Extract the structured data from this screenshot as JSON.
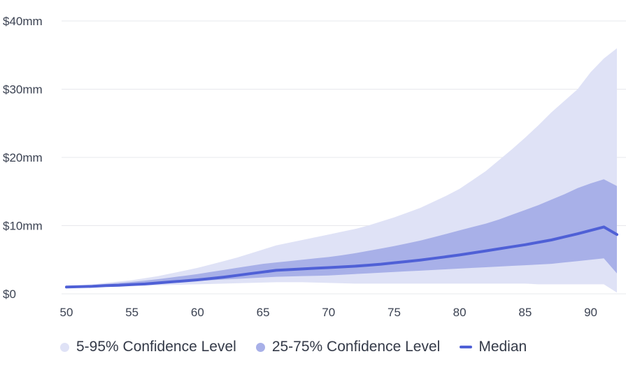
{
  "chart_data": {
    "type": "area",
    "title": "",
    "xlabel": "",
    "ylabel": "",
    "xlim": [
      50,
      92
    ],
    "ylim": [
      0,
      40
    ],
    "x_ticks": [
      50,
      55,
      60,
      65,
      70,
      75,
      80,
      85,
      90
    ],
    "x_tick_labels": [
      "50",
      "55",
      "60",
      "65",
      "70",
      "75",
      "80",
      "85",
      "90"
    ],
    "y_ticks": [
      0,
      10,
      20,
      30,
      40
    ],
    "y_tick_labels": [
      "$0",
      "$10mm",
      "$20mm",
      "$30mm",
      "$40mm"
    ],
    "x": [
      50,
      51,
      52,
      53,
      54,
      55,
      56,
      57,
      58,
      59,
      60,
      61,
      62,
      63,
      64,
      65,
      66,
      67,
      68,
      69,
      70,
      71,
      72,
      73,
      74,
      75,
      76,
      77,
      78,
      79,
      80,
      81,
      82,
      83,
      84,
      85,
      86,
      87,
      88,
      89,
      90,
      91,
      92
    ],
    "series": [
      {
        "name": "5-95% Confidence Level",
        "kind": "band",
        "color": "#dfe2f6",
        "low": [
          0.9,
          0.95,
          1.0,
          1.05,
          1.1,
          1.15,
          1.2,
          1.25,
          1.3,
          1.35,
          1.4,
          1.45,
          1.5,
          1.55,
          1.6,
          1.65,
          1.7,
          1.7,
          1.7,
          1.65,
          1.6,
          1.55,
          1.5,
          1.5,
          1.5,
          1.5,
          1.5,
          1.5,
          1.5,
          1.5,
          1.5,
          1.5,
          1.5,
          1.5,
          1.5,
          1.5,
          1.4,
          1.4,
          1.4,
          1.4,
          1.4,
          1.4,
          0.2
        ],
        "high": [
          1.1,
          1.25,
          1.4,
          1.6,
          1.8,
          2.0,
          2.3,
          2.6,
          3.0,
          3.4,
          3.8,
          4.3,
          4.8,
          5.3,
          5.9,
          6.5,
          7.1,
          7.5,
          7.9,
          8.3,
          8.7,
          9.1,
          9.5,
          10.0,
          10.6,
          11.2,
          11.9,
          12.6,
          13.5,
          14.4,
          15.4,
          16.7,
          18.0,
          19.6,
          21.2,
          22.9,
          24.7,
          26.6,
          28.3,
          30.0,
          32.5,
          34.5,
          36.0
        ]
      },
      {
        "name": "25-75% Confidence Level",
        "kind": "band",
        "color": "#a8b0e8",
        "low": [
          0.9,
          1.0,
          1.1,
          1.2,
          1.3,
          1.4,
          1.5,
          1.6,
          1.7,
          1.8,
          1.9,
          2.0,
          2.1,
          2.2,
          2.3,
          2.4,
          2.5,
          2.55,
          2.6,
          2.65,
          2.7,
          2.8,
          2.9,
          3.0,
          3.1,
          3.2,
          3.3,
          3.4,
          3.5,
          3.6,
          3.7,
          3.8,
          3.9,
          4.0,
          4.1,
          4.2,
          4.3,
          4.4,
          4.6,
          4.8,
          5.0,
          5.2,
          3.0
        ],
        "high": [
          1.0,
          1.15,
          1.3,
          1.45,
          1.6,
          1.75,
          1.95,
          2.15,
          2.4,
          2.65,
          2.9,
          3.2,
          3.5,
          3.8,
          4.1,
          4.4,
          4.6,
          4.8,
          5.0,
          5.2,
          5.4,
          5.65,
          5.95,
          6.3,
          6.65,
          7.0,
          7.4,
          7.8,
          8.3,
          8.8,
          9.3,
          9.8,
          10.3,
          10.9,
          11.6,
          12.3,
          13.0,
          13.8,
          14.6,
          15.5,
          16.2,
          16.8,
          15.8
        ]
      },
      {
        "name": "Median",
        "kind": "line",
        "color": "#4f60d6",
        "values": [
          1.0,
          1.05,
          1.1,
          1.2,
          1.25,
          1.35,
          1.45,
          1.6,
          1.75,
          1.9,
          2.05,
          2.25,
          2.45,
          2.7,
          2.95,
          3.2,
          3.45,
          3.55,
          3.65,
          3.75,
          3.85,
          3.95,
          4.05,
          4.2,
          4.35,
          4.55,
          4.75,
          4.95,
          5.2,
          5.45,
          5.7,
          6.0,
          6.3,
          6.6,
          6.9,
          7.2,
          7.55,
          7.9,
          8.35,
          8.8,
          9.3,
          9.8,
          8.7
        ]
      }
    ],
    "legend": {
      "position": "bottom",
      "items": [
        {
          "label": "5-95% Confidence Level",
          "marker": "dot",
          "color": "#dfe2f6"
        },
        {
          "label": "25-75% Confidence Level",
          "marker": "dot",
          "color": "#a8b0e8"
        },
        {
          "label": "Median",
          "marker": "dash",
          "color": "#4f60d6"
        }
      ]
    }
  }
}
